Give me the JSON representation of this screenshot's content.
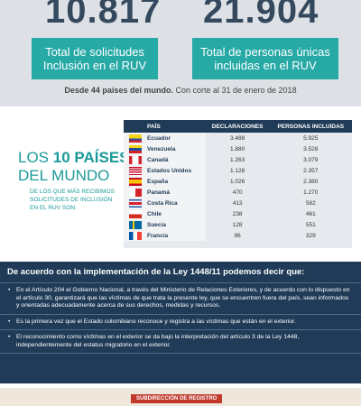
{
  "stats": [
    {
      "number": "10.817",
      "label": "Total de solicitudes Inclusión en el RUV"
    },
    {
      "number": "21.904",
      "label": "Total de personas únicas incluidas en el RUV"
    }
  ],
  "note": {
    "bold": "Desde 44 países del mundo.",
    "text": "Con corte al 31 de enero de 2018"
  },
  "ranking": {
    "title_light": "LOS",
    "title_bold": "10 PAÍSES",
    "title_end": "DEL MUNDO",
    "subtitle": "DE LOS QUE MÁS RECIBIMOS SOLICITUDES DE INCLUSIÓN EN EL RUV SON:",
    "table": {
      "header": [
        "PAÍS",
        "DECLARACIONES",
        "PERSONAS INCLUIDAS"
      ],
      "rows": [
        [
          "Ecuador",
          "3.488",
          "5.925"
        ],
        [
          "Venezuela",
          "1.880",
          "3.528"
        ],
        [
          "Canadá",
          "1.263",
          "3.079"
        ],
        [
          "Estados Unidos",
          "1.128",
          "2.357"
        ],
        [
          "España",
          "1.026",
          "2.380"
        ],
        [
          "Panamá",
          "470",
          "1.270"
        ],
        [
          "Costa Rica",
          "413",
          "582"
        ],
        [
          "Chile",
          "238",
          "461"
        ],
        [
          "Suecia",
          "128",
          "551"
        ],
        [
          "Francia",
          "96",
          "329"
        ]
      ]
    }
  },
  "law": {
    "heading": "De acuerdo con la implementación de la Ley 1448/11 podemos decir que:",
    "bullets": [
      "En el Artículo 204 el Gobierno Nacional, a través del Ministerio de Relaciones Exteriores, y de acuerdo con lo dispuesto en el artículo 30, garantizará que las víctimas de que trata la presente ley, que se encuentren fuera del país, sean informados y orientadas adecuadamente acerca de sus derechos, medidas y recursos.",
      "Es la primera vez que el Estado colombiano reconoce y registra a las víctimas que están en el exterior.",
      "El reconocimiento como víctimas en el exterior se da bajo la interpretación del artículo 3 de la Ley 1448, independientemente del estatus migratorio en el exterior."
    ]
  },
  "footer": {
    "label": "SUBDIRECCIÓN DE REGISTRO"
  }
}
